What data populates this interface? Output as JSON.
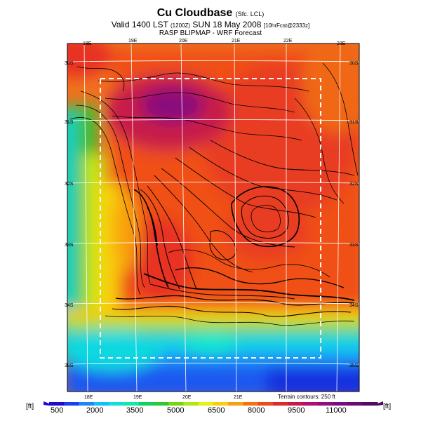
{
  "header": {
    "title": "Cu Cloudbase",
    "title_suffix": "(Sfc. LCL)",
    "valid": "Valid 1400 LST",
    "valid_utc": "(1200Z)",
    "date": "SUN 18 May 2008",
    "forecast_note": "[10hrFcst@2333z]",
    "subtitle": "RASP BLIPMAP - WRF Forecast"
  },
  "map": {
    "lon_labels": [
      "18E",
      "19E",
      "20E",
      "21E",
      "22E",
      "23E"
    ],
    "lat_labels": [
      "30S",
      "31S",
      "32S",
      "33S",
      "34S",
      "35S"
    ],
    "terrain_note": "Terrain contours: 250 ft"
  },
  "colorbar": {
    "unit_left": "[ft]",
    "unit_right": "[ft]",
    "labels": [
      "500",
      "2000",
      "3500",
      "5000",
      "6500",
      "8000",
      "9500",
      "11000"
    ],
    "colors": [
      "#1c0ad0",
      "#1840f0",
      "#1c88f8",
      "#10c0f8",
      "#10e0d8",
      "#10e8a8",
      "#10d060",
      "#30c830",
      "#70d810",
      "#b0e810",
      "#e8f010",
      "#f8d010",
      "#f8a010",
      "#f87010",
      "#f04818",
      "#e02828",
      "#c81848",
      "#b01070",
      "#900c80",
      "#780c88",
      "#680c70",
      "#500c60"
    ],
    "color_min": "#1c0ad0",
    "color_max": "#500c60"
  }
}
